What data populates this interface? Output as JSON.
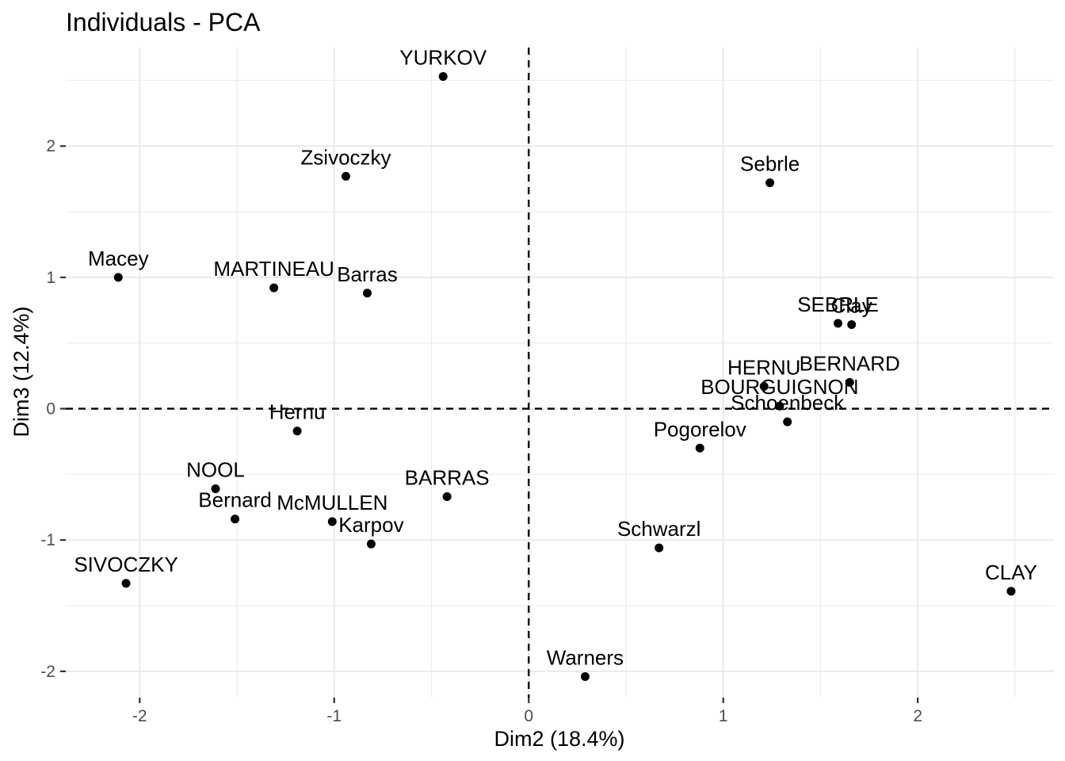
{
  "chart_data": {
    "type": "scatter",
    "title": "Individuals - PCA",
    "xlabel": "Dim2 (18.4%)",
    "ylabel": "Dim3 (12.4%)",
    "xlim": [
      -2.38,
      2.7
    ],
    "ylim": [
      -2.2,
      2.75
    ],
    "x_ticks": [
      -2,
      -1,
      0,
      1,
      2
    ],
    "y_ticks": [
      -2,
      -1,
      0,
      1,
      2
    ],
    "x_tick_labels": [
      "-2",
      "-1",
      "0",
      "1",
      "2"
    ],
    "y_tick_labels": [
      "-2",
      "-1",
      "0",
      "1",
      "2"
    ],
    "reference_lines": {
      "x": 0,
      "y": 0,
      "style": "dashed"
    },
    "grid": true,
    "legend": "none",
    "marker_color": "#000000",
    "points": [
      {
        "label": "YURKOV",
        "x": -0.44,
        "y": 2.53
      },
      {
        "label": "Zsivoczky",
        "x": -0.94,
        "y": 1.77
      },
      {
        "label": "Sebrle",
        "x": 1.24,
        "y": 1.72
      },
      {
        "label": "Macey",
        "x": -2.11,
        "y": 1.0
      },
      {
        "label": "MARTINEAU",
        "x": -1.31,
        "y": 0.92
      },
      {
        "label": "Barras",
        "x": -0.83,
        "y": 0.88
      },
      {
        "label": "SEBRLE",
        "x": 1.59,
        "y": 0.65
      },
      {
        "label": "Clay",
        "x": 1.66,
        "y": 0.64
      },
      {
        "label": "HERNU",
        "x": 1.21,
        "y": 0.17
      },
      {
        "label": "BERNARD",
        "x": 1.65,
        "y": 0.2
      },
      {
        "label": "BOURGUIGNON",
        "x": 1.29,
        "y": 0.02
      },
      {
        "label": "Schoenbeck",
        "x": 1.33,
        "y": -0.1
      },
      {
        "label": "Hernu",
        "x": -1.19,
        "y": -0.17
      },
      {
        "label": "Pogorelov",
        "x": 0.88,
        "y": -0.3
      },
      {
        "label": "NOOL",
        "x": -1.61,
        "y": -0.61
      },
      {
        "label": "BARRAS",
        "x": -0.42,
        "y": -0.67
      },
      {
        "label": "Bernard",
        "x": -1.51,
        "y": -0.84
      },
      {
        "label": "McMULLEN",
        "x": -1.01,
        "y": -0.86
      },
      {
        "label": "Karpov",
        "x": -0.81,
        "y": -1.03
      },
      {
        "label": "Schwarzl",
        "x": 0.67,
        "y": -1.06
      },
      {
        "label": "SIVOCZKY",
        "x": -2.07,
        "y": -1.33
      },
      {
        "label": "CLAY",
        "x": 2.48,
        "y": -1.39
      },
      {
        "label": "Warners",
        "x": 0.29,
        "y": -2.04
      }
    ]
  }
}
